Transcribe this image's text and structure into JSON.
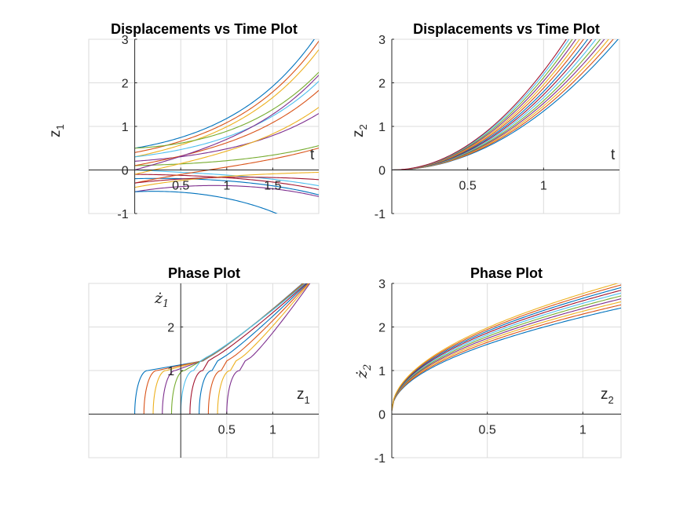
{
  "chart_data": [
    {
      "type": "line",
      "title": "Displacements vs Time Plot",
      "xlabel": "t",
      "ylabel": "z",
      "ylabel_sub": "1",
      "xlim": [
        -0.5,
        2.0
      ],
      "ylim": [
        -1,
        3
      ],
      "xticks": [
        0.5,
        1,
        1.5
      ],
      "xtick_labels": [
        "0.5",
        "1",
        "1.5"
      ],
      "yticks": [
        -1,
        0,
        1,
        2,
        3
      ],
      "ytick_labels": [
        "-1",
        "0",
        "1",
        "2",
        "3"
      ],
      "grid": true,
      "axes_through_origin": true,
      "series_model": "z1(t) = a*cosh(t) + b*sinh(t) over t in [0, 2]",
      "series": [
        {
          "a": 0.5,
          "b": 0.35
        },
        {
          "a": 0.4,
          "b": 0.4
        },
        {
          "a": 0.3,
          "b": 0.45
        },
        {
          "a": 0.2,
          "b": 0.15
        },
        {
          "a": 0.1,
          "b": 0.05
        },
        {
          "a": 0.0,
          "b": -0.1
        },
        {
          "a": -0.1,
          "b": -0.02
        },
        {
          "a": -0.2,
          "b": 0.05
        },
        {
          "a": -0.3,
          "b": 0.45
        },
        {
          "a": -0.4,
          "b": 0.4
        },
        {
          "a": -0.5,
          "b": 0.35
        },
        {
          "a": 0.5,
          "b": 0.1
        },
        {
          "a": 0.3,
          "b": 0.25
        },
        {
          "a": -0.3,
          "b": 0.25
        },
        {
          "a": -0.5,
          "b": 0.1
        },
        {
          "a": 0.1,
          "b": 0.4
        },
        {
          "a": -0.1,
          "b": 0.5
        },
        {
          "a": 0.0,
          "b": 0.6
        }
      ]
    },
    {
      "type": "line",
      "title": "Displacements vs Time Plot",
      "xlabel": "t",
      "ylabel": "z",
      "ylabel_sub": "2",
      "xlim": [
        0,
        1.5
      ],
      "ylim": [
        -1,
        3
      ],
      "xticks": [
        0.5,
        1
      ],
      "xtick_labels": [
        "0.5",
        "1"
      ],
      "yticks": [
        -1,
        0,
        1,
        2,
        3
      ],
      "ytick_labels": [
        "-1",
        "0",
        "1",
        "2",
        "3"
      ],
      "grid": true,
      "axes_through_origin": true,
      "series_model": "z2(t) = k*t^2 over t in [0, 1.5]",
      "series": [
        {
          "k": 1.35
        },
        {
          "k": 1.41
        },
        {
          "k": 1.47
        },
        {
          "k": 1.53
        },
        {
          "k": 1.59
        },
        {
          "k": 1.66
        },
        {
          "k": 1.73
        },
        {
          "k": 1.8
        },
        {
          "k": 1.88
        },
        {
          "k": 1.96
        },
        {
          "k": 2.04
        },
        {
          "k": 2.12
        },
        {
          "k": 2.2
        },
        {
          "k": 2.27
        }
      ]
    },
    {
      "type": "line",
      "title": "Phase Plot",
      "xlabel": "z",
      "xlabel_sub": "1",
      "ylabel": "ż",
      "ylabel_sub": "1",
      "xlim": [
        -1,
        1.5
      ],
      "ylim": [
        -1,
        3
      ],
      "xticks": [
        0.5,
        1
      ],
      "xtick_labels": [
        "0.5",
        "1"
      ],
      "yticks": [
        1,
        2
      ],
      "ytick_labels": [
        "1",
        "2"
      ],
      "grid": true,
      "axes_through_origin": true,
      "series_model": "trajectory starting at (z1 = x0, dz1 = 0), rising with a kink near dz1 = 1.3",
      "series": [
        {
          "x0": -0.5
        },
        {
          "x0": -0.4
        },
        {
          "x0": -0.3
        },
        {
          "x0": -0.2
        },
        {
          "x0": -0.1
        },
        {
          "x0": 0.0
        },
        {
          "x0": 0.1
        },
        {
          "x0": 0.2
        },
        {
          "x0": 0.3
        },
        {
          "x0": 0.4
        },
        {
          "x0": 0.5
        }
      ]
    },
    {
      "type": "line",
      "title": "Phase Plot",
      "xlabel": "z",
      "xlabel_sub": "2",
      "ylabel": "ż",
      "ylabel_sub": "2",
      "xlim": [
        0,
        1.2
      ],
      "ylim": [
        -1,
        3
      ],
      "xticks": [
        0.5,
        1
      ],
      "xtick_labels": [
        "0.5",
        "1"
      ],
      "yticks": [
        -1,
        0,
        1,
        2,
        3
      ],
      "ytick_labels": [
        "-1",
        "0",
        "1",
        "2",
        "3"
      ],
      "grid": true,
      "axes_through_origin": true,
      "series_model": "dz2 = 2*sqrt(k*z2)",
      "series": [
        {
          "k": 1.6
        },
        {
          "k": 1.7
        },
        {
          "k": 1.8
        },
        {
          "k": 1.9
        },
        {
          "k": 2.0
        },
        {
          "k": 2.1
        },
        {
          "k": 2.2
        },
        {
          "k": 2.3
        },
        {
          "k": 2.4
        },
        {
          "k": 2.5
        }
      ]
    }
  ],
  "palette": [
    "#0072BD",
    "#D95319",
    "#EDB120",
    "#7E2F8E",
    "#77AC30",
    "#4DBEEE",
    "#A2142F"
  ]
}
